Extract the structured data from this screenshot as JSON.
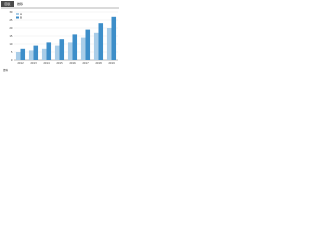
{
  "chart_data": {
    "type": "bar",
    "label": "図表",
    "title": "推移",
    "categories": [
      "2012",
      "2013",
      "2014",
      "2015",
      "2016",
      "2017",
      "2018",
      "2019"
    ],
    "series": [
      {
        "name": "A",
        "color": "#a9cde8",
        "values": [
          5,
          6,
          7,
          9,
          11,
          14,
          17,
          20
        ]
      },
      {
        "name": "B",
        "color": "#3d8ec9",
        "values": [
          7,
          9,
          11,
          13,
          16,
          19,
          23,
          27
        ]
      }
    ],
    "ylim": [
      0,
      30
    ],
    "yticks": [
      0,
      5,
      10,
      15,
      20,
      25,
      30
    ],
    "grid": true,
    "legend": "top-left",
    "note": "資料"
  }
}
